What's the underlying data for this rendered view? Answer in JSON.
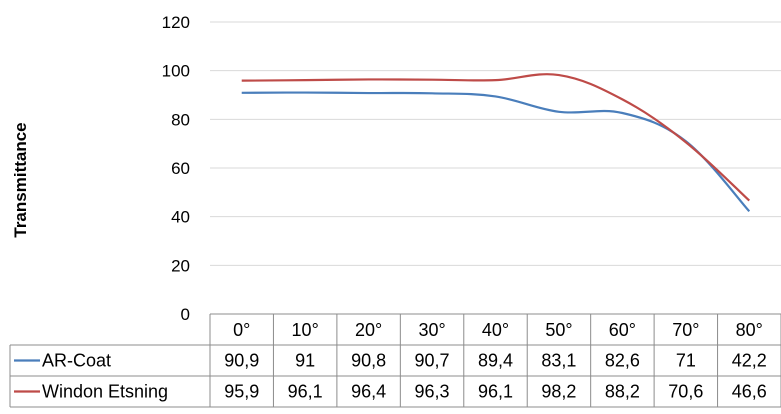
{
  "chart_data": {
    "type": "line",
    "title": "",
    "xlabel": "",
    "ylabel": "Transmittance",
    "ylim": [
      0,
      120
    ],
    "yticks": [
      0,
      20,
      40,
      60,
      80,
      100,
      120
    ],
    "grid": true,
    "categories": [
      "0°",
      "10°",
      "20°",
      "30°",
      "40°",
      "50°",
      "60°",
      "70°",
      "80°"
    ],
    "series": [
      {
        "name": "AR-Coat",
        "color": "#4a7ebb",
        "values": [
          90.9,
          91,
          90.8,
          90.7,
          89.4,
          83.1,
          82.6,
          71,
          42.2
        ],
        "labels": [
          "90,9",
          "91",
          "90,8",
          "90,7",
          "89,4",
          "83,1",
          "82,6",
          "71",
          "42,2"
        ]
      },
      {
        "name": "Windon Etsning",
        "color": "#be4b48",
        "values": [
          95.9,
          96.1,
          96.4,
          96.3,
          96.1,
          98.2,
          88.2,
          70.6,
          46.6
        ],
        "labels": [
          "95,9",
          "96,1",
          "96,4",
          "96,3",
          "96,1",
          "98,2",
          "88,2",
          "70,6",
          "46,6"
        ]
      }
    ],
    "data_table": true
  }
}
